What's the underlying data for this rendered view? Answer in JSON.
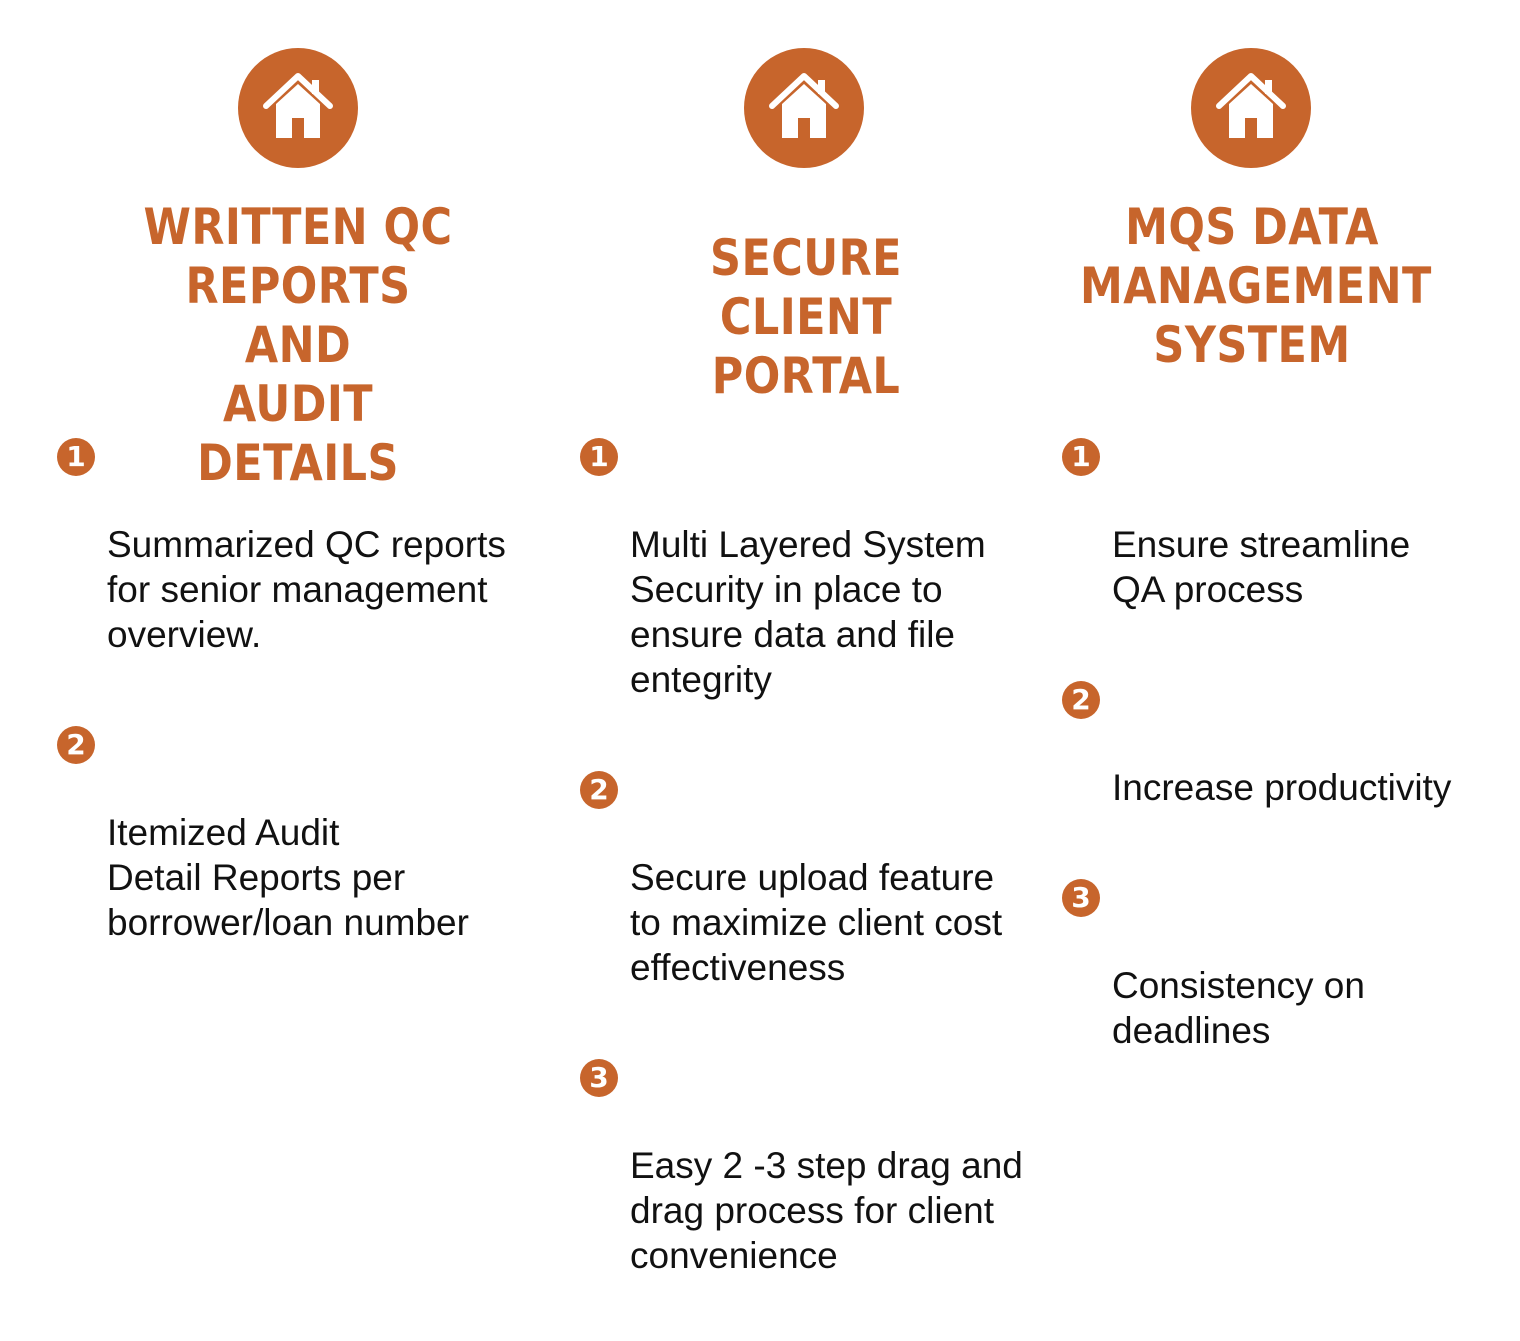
{
  "colors": {
    "accent": "#c7652c",
    "text": "#111111",
    "background": "#ffffff"
  },
  "columns": [
    {
      "icon": "home-icon",
      "title": "WRITTEN QC\nREPORTS AND\nAUDIT DETAILS",
      "items": [
        {
          "number": "1",
          "text": "Summarized QC reports\nfor senior management\noverview."
        },
        {
          "number": "2",
          "text": "Itemized Audit\nDetail Reports per\nborrower/loan number"
        }
      ]
    },
    {
      "icon": "home-icon",
      "title": "SECURE CLIENT\nPORTAL",
      "items": [
        {
          "number": "1",
          "text": "Multi Layered System\nSecurity in place to\nensure data and file\nentegrity"
        },
        {
          "number": "2",
          "text": "Secure upload feature\nto maximize client cost\neffectiveness"
        },
        {
          "number": "3",
          "text": "Easy 2 -3 step drag and\ndrag process for client\nconvenience"
        }
      ]
    },
    {
      "icon": "home-icon",
      "title": "MQS DATA\nMANAGEMENT\nSYSTEM",
      "items": [
        {
          "number": "1",
          "text": "Ensure streamline\nQA process"
        },
        {
          "number": "2",
          "text": "Increase productivity"
        },
        {
          "number": "3",
          "text": "Consistency on\ndeadlines"
        }
      ]
    }
  ]
}
